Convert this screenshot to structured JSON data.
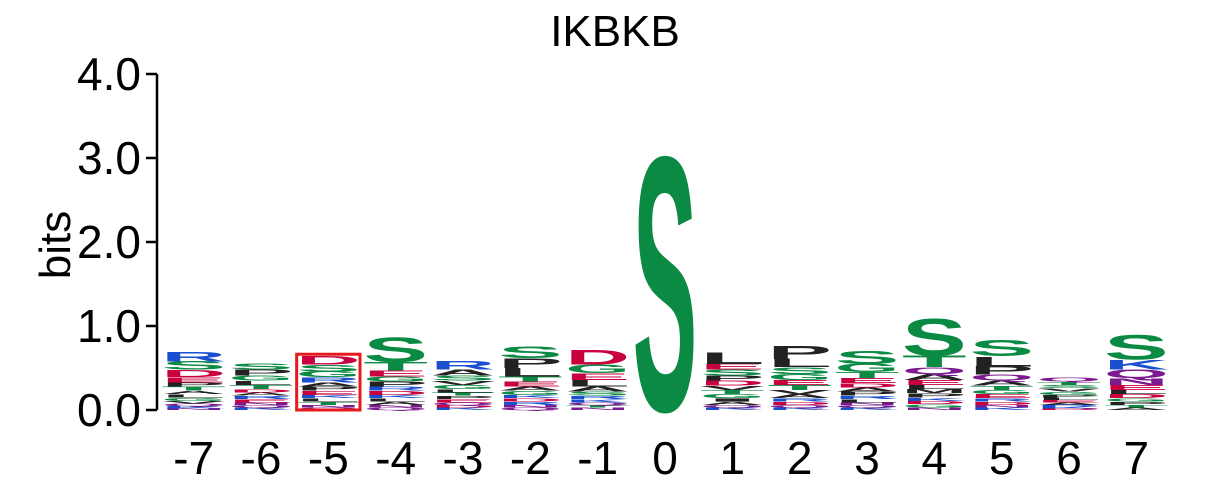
{
  "chart_data": {
    "type": "sequence-logo",
    "title": "IKBKB",
    "ylabel": "bits",
    "xlabel": "",
    "ylim": [
      0,
      4
    ],
    "y_ticks": [
      "0.0",
      "1.0",
      "2.0",
      "3.0",
      "4.0"
    ],
    "positions": [
      {
        "label": "-7",
        "letters": [
          {
            "char": "R",
            "bits": 0.12
          },
          {
            "char": "S",
            "bits": 0.1
          },
          {
            "char": "D",
            "bits": 0.09
          },
          {
            "char": "E",
            "bits": 0.06
          },
          {
            "char": "T",
            "bits": 0.05
          },
          {
            "char": "P",
            "bits": 0.05
          },
          {
            "char": "G",
            "bits": 0.04
          },
          {
            "char": "L",
            "bits": 0.04
          },
          {
            "char": "A",
            "bits": 0.04
          },
          {
            "char": "K",
            "bits": 0.03
          },
          {
            "char": "Q",
            "bits": 0.03
          },
          {
            "char": "V",
            "bits": 0.03
          },
          {
            "char": "N",
            "bits": 0.02
          }
        ]
      },
      {
        "label": "-6",
        "letters": [
          {
            "char": "P",
            "bits": 0.07
          },
          {
            "char": "S",
            "bits": 0.07
          },
          {
            "char": "G",
            "bits": 0.06
          },
          {
            "char": "T",
            "bits": 0.05
          },
          {
            "char": "L",
            "bits": 0.05
          },
          {
            "char": "E",
            "bits": 0.04
          },
          {
            "char": "R",
            "bits": 0.04
          },
          {
            "char": "A",
            "bits": 0.04
          },
          {
            "char": "D",
            "bits": 0.04
          },
          {
            "char": "K",
            "bits": 0.03
          },
          {
            "char": "Q",
            "bits": 0.03
          },
          {
            "char": "N",
            "bits": 0.03
          }
        ]
      },
      {
        "label": "-5",
        "letters": [
          {
            "char": "D",
            "bits": 0.1
          },
          {
            "char": "S",
            "bits": 0.08
          },
          {
            "char": "G",
            "bits": 0.07
          },
          {
            "char": "R",
            "bits": 0.06
          },
          {
            "char": "E",
            "bits": 0.05
          },
          {
            "char": "P",
            "bits": 0.05
          },
          {
            "char": "A",
            "bits": 0.05
          },
          {
            "char": "T",
            "bits": 0.04
          },
          {
            "char": "L",
            "bits": 0.04
          },
          {
            "char": "K",
            "bits": 0.04
          },
          {
            "char": "Q",
            "bits": 0.03
          },
          {
            "char": "N",
            "bits": 0.03
          }
        ]
      },
      {
        "label": "-4",
        "letters": [
          {
            "char": "S",
            "bits": 0.3
          },
          {
            "char": "T",
            "bits": 0.1
          },
          {
            "char": "E",
            "bits": 0.07
          },
          {
            "char": "P",
            "bits": 0.06
          },
          {
            "char": "G",
            "bits": 0.06
          },
          {
            "char": "D",
            "bits": 0.05
          },
          {
            "char": "R",
            "bits": 0.05
          },
          {
            "char": "A",
            "bits": 0.04
          },
          {
            "char": "L",
            "bits": 0.04
          },
          {
            "char": "K",
            "bits": 0.04
          },
          {
            "char": "Q",
            "bits": 0.03
          },
          {
            "char": "N",
            "bits": 0.03
          }
        ]
      },
      {
        "label": "-3",
        "letters": [
          {
            "char": "R",
            "bits": 0.1
          },
          {
            "char": "A",
            "bits": 0.07
          },
          {
            "char": "S",
            "bits": 0.06
          },
          {
            "char": "G",
            "bits": 0.05
          },
          {
            "char": "V",
            "bits": 0.05
          },
          {
            "char": "E",
            "bits": 0.04
          },
          {
            "char": "P",
            "bits": 0.04
          },
          {
            "char": "T",
            "bits": 0.04
          },
          {
            "char": "L",
            "bits": 0.04
          },
          {
            "char": "K",
            "bits": 0.03
          },
          {
            "char": "D",
            "bits": 0.03
          },
          {
            "char": "Q",
            "bits": 0.03
          }
        ]
      },
      {
        "label": "-2",
        "letters": [
          {
            "char": "S",
            "bits": 0.14
          },
          {
            "char": "P",
            "bits": 0.12
          },
          {
            "char": "L",
            "bits": 0.1
          },
          {
            "char": "E",
            "bits": 0.06
          },
          {
            "char": "T",
            "bits": 0.06
          },
          {
            "char": "G",
            "bits": 0.05
          },
          {
            "char": "A",
            "bits": 0.05
          },
          {
            "char": "R",
            "bits": 0.04
          },
          {
            "char": "D",
            "bits": 0.04
          },
          {
            "char": "K",
            "bits": 0.04
          },
          {
            "char": "Q",
            "bits": 0.03
          },
          {
            "char": "N",
            "bits": 0.03
          }
        ]
      },
      {
        "label": "-1",
        "letters": [
          {
            "char": "D",
            "bits": 0.18
          },
          {
            "char": "G",
            "bits": 0.1
          },
          {
            "char": "L",
            "bits": 0.08
          },
          {
            "char": "E",
            "bits": 0.08
          },
          {
            "char": "A",
            "bits": 0.06
          },
          {
            "char": "S",
            "bits": 0.05
          },
          {
            "char": "K",
            "bits": 0.04
          },
          {
            "char": "R",
            "bits": 0.04
          },
          {
            "char": "N",
            "bits": 0.03
          },
          {
            "char": "T",
            "bits": 0.03
          },
          {
            "char": "Q",
            "bits": 0.03
          }
        ]
      },
      {
        "label": "0",
        "letters": [
          {
            "char": "S",
            "bits": 3.12
          }
        ]
      },
      {
        "label": "1",
        "letters": [
          {
            "char": "L",
            "bits": 0.14
          },
          {
            "char": "S",
            "bits": 0.07
          },
          {
            "char": "E",
            "bits": 0.07
          },
          {
            "char": "D",
            "bits": 0.06
          },
          {
            "char": "P",
            "bits": 0.06
          },
          {
            "char": "G",
            "bits": 0.05
          },
          {
            "char": "T",
            "bits": 0.05
          },
          {
            "char": "V",
            "bits": 0.05
          },
          {
            "char": "A",
            "bits": 0.04
          },
          {
            "char": "I",
            "bits": 0.04
          },
          {
            "char": "K",
            "bits": 0.03
          },
          {
            "char": "Q",
            "bits": 0.03
          }
        ]
      },
      {
        "label": "2",
        "letters": [
          {
            "char": "P",
            "bits": 0.16
          },
          {
            "char": "L",
            "bits": 0.1
          },
          {
            "char": "S",
            "bits": 0.08
          },
          {
            "char": "G",
            "bits": 0.07
          },
          {
            "char": "T",
            "bits": 0.06
          },
          {
            "char": "E",
            "bits": 0.06
          },
          {
            "char": "A",
            "bits": 0.05
          },
          {
            "char": "V",
            "bits": 0.05
          },
          {
            "char": "D",
            "bits": 0.04
          },
          {
            "char": "R",
            "bits": 0.04
          },
          {
            "char": "K",
            "bits": 0.03
          },
          {
            "char": "Q",
            "bits": 0.03
          }
        ]
      },
      {
        "label": "3",
        "letters": [
          {
            "char": "S",
            "bits": 0.16
          },
          {
            "char": "G",
            "bits": 0.1
          },
          {
            "char": "T",
            "bits": 0.07
          },
          {
            "char": "E",
            "bits": 0.06
          },
          {
            "char": "P",
            "bits": 0.05
          },
          {
            "char": "A",
            "bits": 0.05
          },
          {
            "char": "D",
            "bits": 0.05
          },
          {
            "char": "L",
            "bits": 0.04
          },
          {
            "char": "R",
            "bits": 0.04
          },
          {
            "char": "K",
            "bits": 0.03
          },
          {
            "char": "Q",
            "bits": 0.03
          },
          {
            "char": "N",
            "bits": 0.03
          }
        ]
      },
      {
        "label": "4",
        "letters": [
          {
            "char": "S",
            "bits": 0.45
          },
          {
            "char": "T",
            "bits": 0.14
          },
          {
            "char": "Q",
            "bits": 0.08
          },
          {
            "char": "A",
            "bits": 0.07
          },
          {
            "char": "E",
            "bits": 0.06
          },
          {
            "char": "P",
            "bits": 0.05
          },
          {
            "char": "M",
            "bits": 0.05
          },
          {
            "char": "L",
            "bits": 0.05
          },
          {
            "char": "G",
            "bits": 0.04
          },
          {
            "char": "D",
            "bits": 0.04
          },
          {
            "char": "K",
            "bits": 0.04
          },
          {
            "char": "N",
            "bits": 0.03
          }
        ]
      },
      {
        "label": "5",
        "letters": [
          {
            "char": "S",
            "bits": 0.2
          },
          {
            "char": "L",
            "bits": 0.12
          },
          {
            "char": "P",
            "bits": 0.1
          },
          {
            "char": "Q",
            "bits": 0.07
          },
          {
            "char": "A",
            "bits": 0.06
          },
          {
            "char": "E",
            "bits": 0.05
          },
          {
            "char": "G",
            "bits": 0.05
          },
          {
            "char": "T",
            "bits": 0.05
          },
          {
            "char": "D",
            "bits": 0.04
          },
          {
            "char": "R",
            "bits": 0.04
          },
          {
            "char": "K",
            "bits": 0.03
          },
          {
            "char": "N",
            "bits": 0.03
          }
        ]
      },
      {
        "label": "6",
        "letters": [
          {
            "char": "Q",
            "bits": 0.05
          },
          {
            "char": "G",
            "bits": 0.04
          },
          {
            "char": "V",
            "bits": 0.04
          },
          {
            "char": "S",
            "bits": 0.04
          },
          {
            "char": "T",
            "bits": 0.04
          },
          {
            "char": "A",
            "bits": 0.03
          },
          {
            "char": "E",
            "bits": 0.03
          },
          {
            "char": "L",
            "bits": 0.03
          },
          {
            "char": "P",
            "bits": 0.03
          },
          {
            "char": "D",
            "bits": 0.02
          },
          {
            "char": "K",
            "bits": 0.02
          },
          {
            "char": "R",
            "bits": 0.02
          }
        ]
      },
      {
        "label": "7",
        "letters": [
          {
            "char": "S",
            "bits": 0.3
          },
          {
            "char": "K",
            "bits": 0.12
          },
          {
            "char": "Q",
            "bits": 0.1
          },
          {
            "char": "N",
            "bits": 0.08
          },
          {
            "char": "E",
            "bits": 0.06
          },
          {
            "char": "D",
            "bits": 0.05
          },
          {
            "char": "L",
            "bits": 0.05
          },
          {
            "char": "P",
            "bits": 0.04
          },
          {
            "char": "G",
            "bits": 0.04
          },
          {
            "char": "A",
            "bits": 0.03
          },
          {
            "char": "T",
            "bits": 0.03
          }
        ]
      }
    ],
    "highlight": {
      "position": "-5",
      "color": "#e41a1c"
    },
    "colors": {
      "polar": "#0b8a44",
      "acidic": "#c8003e",
      "basic": "#1a4fcf",
      "hydrophobic": "#222222",
      "amide": "#7b1a8f"
    },
    "residue_classes": {
      "polar": [
        "S",
        "T",
        "G",
        "Y",
        "C"
      ],
      "acidic": [
        "D",
        "E"
      ],
      "basic": [
        "R",
        "K",
        "H"
      ],
      "hydrophobic": [
        "A",
        "V",
        "L",
        "I",
        "P",
        "W",
        "F",
        "M"
      ],
      "amide": [
        "N",
        "Q"
      ]
    }
  }
}
